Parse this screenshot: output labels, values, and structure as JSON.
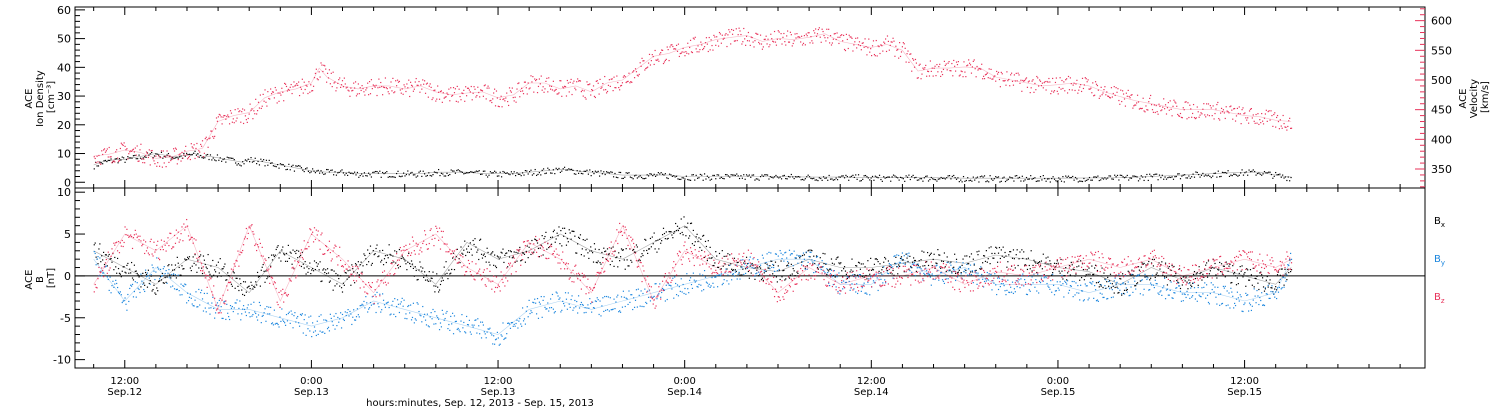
{
  "chart_data": [
    {
      "type": "scatter",
      "panel": "top",
      "left_axis": {
        "label_lines": [
          "ACE",
          "Ion Density",
          "[cm⁻³]"
        ],
        "ylim": [
          -2,
          61
        ],
        "ticks": [
          0,
          10,
          20,
          30,
          40,
          50,
          60
        ],
        "color": "#000000"
      },
      "right_axis": {
        "label_lines": [
          "ACE",
          "Velocity",
          "[km/s]"
        ],
        "ylim": [
          318,
          623
        ],
        "ticks": [
          350,
          400,
          450,
          500,
          550,
          600
        ],
        "color": "#e8325a"
      },
      "series": [
        {
          "axis": "left",
          "color": "#000000",
          "x": [
            10,
            10.5,
            11,
            11.5,
            12,
            12.5,
            13,
            13.5,
            14,
            14.5,
            15,
            15.5,
            16,
            16.5,
            17,
            17.5,
            18,
            18.5,
            19,
            19.5,
            20,
            20.5,
            21,
            21.5,
            22,
            22.5,
            23,
            23.5,
            24,
            25,
            26,
            27,
            28,
            29,
            30,
            31,
            32,
            33,
            34,
            35,
            36,
            37,
            38,
            39,
            40,
            41,
            42,
            43,
            44,
            45,
            46,
            47,
            48,
            49,
            50,
            52,
            54,
            56,
            58,
            60,
            62,
            64,
            66,
            68,
            70,
            72,
            74,
            76,
            78,
            80,
            82,
            84,
            85,
            86,
            86.5,
            87
          ],
          "y": [
            6,
            7,
            7.5,
            8,
            8,
            8.5,
            9,
            9.5,
            10,
            9.5,
            9,
            9,
            9.5,
            10,
            9,
            9,
            8.5,
            8,
            7.5,
            7,
            8,
            7.5,
            7,
            6.5,
            6,
            5.5,
            5,
            4.5,
            4,
            3.5,
            3.5,
            3,
            3,
            3,
            3,
            3,
            3.5,
            3.5,
            3.5,
            3,
            3,
            3,
            3.5,
            4,
            4.5,
            4,
            3.5,
            3,
            2.5,
            2.5,
            2.5,
            2.5,
            2,
            2,
            2,
            2,
            2,
            1.8,
            1.8,
            1.6,
            1.6,
            1.6,
            1.4,
            1.4,
            1.4,
            1.4,
            1.5,
            1.6,
            2,
            2.5,
            3,
            3.5,
            3.5,
            2.5,
            2,
            1.8
          ]
        },
        {
          "axis": "right",
          "color": "#e8325a",
          "x": [
            10,
            11,
            12,
            13,
            14,
            15,
            16,
            16.5,
            17,
            18,
            19,
            20,
            21,
            22,
            23,
            24,
            24.5,
            25,
            26,
            27,
            28,
            29,
            30,
            31,
            32,
            33,
            34,
            35,
            36,
            37,
            38,
            39,
            40,
            41,
            42,
            43,
            44,
            45,
            46,
            47,
            48,
            49,
            50,
            51,
            52,
            53,
            54,
            55,
            56,
            57,
            58,
            59,
            60,
            61,
            62,
            63,
            64,
            65,
            66,
            67,
            68,
            69,
            70,
            71,
            72,
            73,
            74,
            75,
            76,
            77,
            78,
            79,
            80,
            81,
            82,
            83,
            84,
            85,
            86,
            87
          ],
          "y": [
            372,
            375,
            382,
            378,
            368,
            370,
            380,
            382,
            385,
            430,
            440,
            445,
            470,
            480,
            485,
            495,
            520,
            505,
            490,
            485,
            490,
            490,
            485,
            490,
            480,
            475,
            478,
            480,
            470,
            475,
            495,
            495,
            485,
            490,
            480,
            495,
            500,
            520,
            540,
            545,
            555,
            560,
            568,
            572,
            575,
            565,
            570,
            568,
            572,
            578,
            565,
            560,
            555,
            560,
            550,
            515,
            520,
            520,
            522,
            520,
            505,
            500,
            495,
            490,
            492,
            495,
            490,
            480,
            472,
            465,
            460,
            455,
            450,
            450,
            450,
            445,
            440,
            438,
            432,
            430
          ]
        }
      ]
    },
    {
      "type": "scatter",
      "panel": "bottom",
      "left_axis": {
        "label_lines": [
          "ACE",
          "B",
          "[nT]"
        ],
        "ylim": [
          -11,
          10.5
        ],
        "ticks": [
          -10,
          -5,
          0,
          5,
          10
        ],
        "color": "#000000"
      },
      "zero_line": 0,
      "series": [
        {
          "name": "Bₓ",
          "color": "#000000",
          "x": [
            10,
            12,
            14,
            16,
            18,
            20,
            22,
            24,
            26,
            28,
            30,
            32,
            34,
            36,
            38,
            40,
            42,
            44,
            46,
            48,
            50,
            52,
            54,
            56,
            58,
            60,
            62,
            64,
            66,
            68,
            70,
            72,
            74,
            76,
            78,
            80,
            82,
            84,
            86,
            87
          ],
          "y": [
            3,
            1,
            -1,
            2,
            1,
            -2,
            3,
            1,
            -1,
            3,
            2,
            -1,
            4,
            2,
            3,
            5,
            3,
            2,
            4,
            6,
            2,
            1,
            0.5,
            2,
            1,
            1,
            1.5,
            2,
            1.5,
            2.5,
            2,
            1,
            0.5,
            -1,
            1,
            -0.5,
            1,
            0,
            -1,
            1
          ]
        },
        {
          "name": "Bᵧ",
          "color": "#1b86de",
          "x": [
            10,
            12,
            14,
            16,
            18,
            20,
            22,
            24,
            26,
            28,
            30,
            32,
            34,
            36,
            38,
            40,
            42,
            44,
            46,
            48,
            50,
            52,
            54,
            56,
            58,
            60,
            62,
            64,
            66,
            68,
            70,
            72,
            74,
            76,
            78,
            80,
            82,
            84,
            86,
            87
          ],
          "y": [
            2,
            -3,
            1,
            -2,
            -4,
            -4,
            -5,
            -6,
            -5,
            -3,
            -4,
            -5,
            -6,
            -7,
            -4,
            -3,
            -4,
            -3,
            -2,
            -1,
            0,
            1,
            2,
            2,
            -1,
            -1,
            2,
            0,
            1,
            -1,
            -1,
            -1,
            -2,
            -1,
            -1,
            -2,
            -2,
            -3,
            -2,
            2
          ]
        },
        {
          "name": "B_z",
          "color": "#e8325a",
          "x": [
            10,
            12,
            14,
            16,
            18,
            20,
            22,
            24,
            26,
            28,
            30,
            32,
            34,
            36,
            38,
            40,
            42,
            44,
            46,
            48,
            50,
            52,
            54,
            56,
            58,
            60,
            62,
            64,
            66,
            68,
            70,
            72,
            74,
            76,
            78,
            80,
            82,
            84,
            86,
            87
          ],
          "y": [
            -1,
            5,
            3,
            6,
            -4,
            6,
            -3,
            5,
            2,
            -2,
            3,
            5,
            1,
            -1,
            4,
            2,
            -2,
            6,
            -3,
            3,
            1,
            2,
            -2,
            1,
            -1,
            0,
            0,
            1,
            -1,
            0.5,
            0,
            1,
            2,
            1,
            2,
            0,
            1,
            2,
            1,
            2
          ]
        }
      ]
    }
  ],
  "time_axis": {
    "xlim_hours": [
      8.8,
      95.6
    ],
    "major_hours": [
      12,
      24,
      36,
      48,
      60,
      72,
      84
    ],
    "minor_step_hours": 2,
    "major_labels": [
      {
        "hour": 12,
        "time": "12:00",
        "date": "Sep.12"
      },
      {
        "hour": 24,
        "time": "0:00",
        "date": "Sep.13"
      },
      {
        "hour": 36,
        "time": "12:00",
        "date": "Sep.13"
      },
      {
        "hour": 48,
        "time": "0:00",
        "date": "Sep.14"
      },
      {
        "hour": 60,
        "time": "12:00",
        "date": "Sep.14"
      },
      {
        "hour": 72,
        "time": "0:00",
        "date": "Sep.15"
      },
      {
        "hour": 84,
        "time": "12:00",
        "date": "Sep.15"
      }
    ],
    "title": "hours:minutes, Sep. 12, 2013 - Sep. 15, 2013"
  },
  "legend": [
    {
      "base": "B",
      "sub": "x",
      "color": "#000000"
    },
    {
      "base": "B",
      "sub": "y",
      "color": "#1b86de"
    },
    {
      "base": "B",
      "sub": "z",
      "color": "#e8325a"
    }
  ]
}
